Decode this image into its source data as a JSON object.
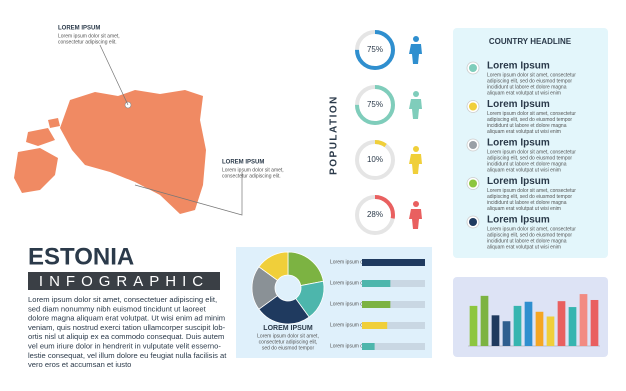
{
  "map": {
    "callouts": [
      {
        "title": "LOREM IPSUM",
        "lines": [
          "Lorem ipsum dolor sit amet,",
          "consectetur adipiscing elit."
        ]
      },
      {
        "title": "LOREM IPSUM",
        "lines": [
          "Lorem ipsum dolor sit amet,",
          "consectetur adipiscing elit."
        ]
      }
    ]
  },
  "title": "ESTONIA",
  "subtitle": "INFOGRAPHIC",
  "body": [
    "Lorem ipsum dolor sit amet, consectetuer adipiscing elit,",
    "sed diam nonummy nibh euismod tincidunt ut laoreet",
    "dolore magna aliquam erat volutpat.  Ut wisi enim ad minim",
    "veniam, quis nostrud exerci tation ullamcorper suscipit lob-",
    "ortis nisl ut aliquip ex ea commodo consequat. Duis autem",
    "vel eum iriure dolor in hendrerit in vulputate velit esserno-",
    "lestie consequat, vel illum dolore eu feugiat nulla facilisis at",
    "vero eros et accumsan et iusto"
  ],
  "population": {
    "label": "POPULATION",
    "items": [
      {
        "value": 75,
        "label": "75%",
        "color": "#2f8fcf"
      },
      {
        "value": 75,
        "label": "75%",
        "color": "#7fcdbb"
      },
      {
        "value": 10,
        "label": "10%",
        "color": "#f0cf3a"
      },
      {
        "value": 28,
        "label": "28%",
        "color": "#e96060"
      }
    ]
  },
  "country": {
    "title": "COUNTRY HEADLINE",
    "items": [
      {
        "title": "Lorem Ipsum",
        "color": "#7fcdbb",
        "lines": [
          "Lorem ipsum dolor sit amet, consectetur",
          "adipiscing elit, sed do eiusmod tempor",
          "incididunt ut labore et dolore magna",
          "aliquam erat volutpat ut wisi enim"
        ]
      },
      {
        "title": "Lorem Ipsum",
        "color": "#f0cf3a",
        "lines": [
          "Lorem ipsum dolor sit amet, consectetur",
          "adipiscing elit, sed do eiusmod tempor",
          "incididunt ut labore et dolore magna",
          "aliquam erat volutpat ut wisi enim"
        ]
      },
      {
        "title": "Lorem Ipsum",
        "color": "#9aa0a6",
        "lines": [
          "Lorem ipsum dolor sit amet, consectetur",
          "adipiscing elit, sed do eiusmod tempor",
          "incididunt ut labore et dolore magna",
          "aliquam erat volutpat ut wisi enim"
        ]
      },
      {
        "title": "Lorem Ipsum",
        "color": "#8dc63f",
        "lines": [
          "Lorem ipsum dolor sit amet, consectetur",
          "adipiscing elit, sed do eiusmod tempor",
          "incididunt ut labore et dolore magna",
          "aliquam erat volutpat ut wisi enim"
        ]
      },
      {
        "title": "Lorem Ipsum",
        "color": "#1f3a5f",
        "lines": [
          "Lorem ipsum dolor sit amet, consectetur",
          "adipiscing elit, sed do eiusmod tempor",
          "incididunt ut labore et dolore magna",
          "aliquam erat volutpat ut wisi enim"
        ]
      }
    ]
  },
  "pie": {
    "values": [
      22,
      18,
      25,
      20,
      15
    ],
    "colors": [
      "#7cb342",
      "#4db6ac",
      "#1f3a5f",
      "#8a9196",
      "#f0cf3a"
    ],
    "caption_title": "LOREM IPSUM",
    "caption": [
      "Lorem ipsum dolor sit amet,",
      "consectetur adipiscing elit,",
      "sed do eiusmod tempor"
    ],
    "bars": [
      {
        "text": "Lorem ipsum dolor sit amet",
        "value": 100,
        "color": "#1f3a5f"
      },
      {
        "text": "Lorem ipsum dolor sit amet",
        "value": 45,
        "color": "#4db6ac"
      },
      {
        "text": "Lorem ipsum dolor sit amet",
        "value": 45,
        "color": "#7cb342"
      },
      {
        "text": "Lorem ipsum dolor sit amet",
        "value": 40,
        "color": "#f0cf3a"
      },
      {
        "text": "Lorem ipsum dolor sit amet",
        "value": 20,
        "color": "#4db6ac"
      }
    ]
  },
  "bar_chart": {
    "ylim": [
      0,
      100
    ],
    "values": [
      68,
      85,
      52,
      42,
      68,
      75,
      58,
      50,
      76,
      66,
      88,
      78
    ],
    "colors": [
      "#8dc63f",
      "#7cb342",
      "#1f3a5f",
      "#2f5f8f",
      "#36b5b0",
      "#2f8fcf",
      "#f5a623",
      "#f0cf3a",
      "#e96060",
      "#36b5b0",
      "#f28b82",
      "#e96060"
    ]
  }
}
